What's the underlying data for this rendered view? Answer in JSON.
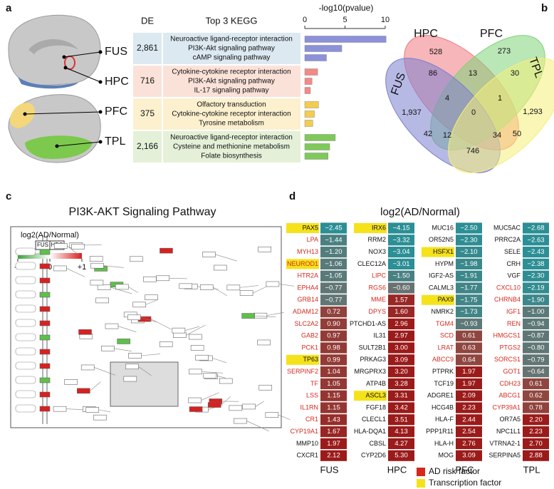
{
  "panel_labels": [
    "a",
    "b",
    "c",
    "d"
  ],
  "chart_data": [
    {
      "type": "bar",
      "title": "-log10(pvalue)",
      "de_header": "DE",
      "terms_header": "Top 3 KEGG",
      "xlim": [
        0,
        10
      ],
      "xticks": [
        0,
        5,
        10
      ],
      "groups": [
        {
          "name": "FUS",
          "de": "2,861",
          "color": "#8c91d9",
          "background": "#dce9f1",
          "categories": [
            "Neuroactive ligand-receptor interaction",
            "PI3K-Akt signaling pathway",
            "cAMP signaling pathway"
          ],
          "values": [
            10.1,
            4.6,
            2.7
          ]
        },
        {
          "name": "HPC",
          "de": "716",
          "color": "#f28a86",
          "background": "#fbe2d9",
          "categories": [
            "Cytokine-cytokine receptor interaction",
            "PI3K-Akt signaling pathway",
            "IL-17 signaling pathway"
          ],
          "values": [
            1.6,
            0.9,
            0.7
          ]
        },
        {
          "name": "PFC",
          "de": "375",
          "color": "#f4cc4e",
          "background": "#fcf0cf",
          "categories": [
            "Olfactory transduction",
            "Cytokine-cytokine receptor interaction",
            "Tyrosine metabolism"
          ],
          "values": [
            1.7,
            1.2,
            1.0
          ]
        },
        {
          "name": "TPL",
          "de": "2,166",
          "color": "#7fc95a",
          "background": "#e4f1d8",
          "categories": [
            "Neuroactive ligand-receptor interaction",
            "Cysteine and methionine metabolism",
            "Folate biosynthesis"
          ],
          "values": [
            3.8,
            3.1,
            2.9
          ]
        }
      ]
    },
    {
      "type": "venn",
      "sets": [
        "HPC",
        "PFC",
        "FUS",
        "TPL"
      ],
      "colors": [
        "#f07a80",
        "#7fd37a",
        "#7b7fd0",
        "#f6ef7a"
      ],
      "values": [
        528,
        273,
        1937,
        1293,
        86,
        13,
        30,
        4,
        1,
        42,
        0,
        50,
        12,
        34,
        746
      ],
      "value_labels": [
        "528",
        "273",
        "1,937",
        "1,293",
        "86",
        "13",
        "30",
        "4",
        "1",
        "42",
        "0",
        "50",
        "12",
        "34",
        "746"
      ]
    }
  ],
  "pathway": {
    "title": "PI3K-AKT Signaling Pathway",
    "legend_title": "log2(AD/Normal)",
    "legend_columns": [
      "FUS",
      "HPC"
    ],
    "ticks": [
      -1,
      0,
      {
        "value": 1,
        "label": "+1"
      }
    ]
  },
  "heatmap": {
    "title": "log2(AD/Normal)",
    "legend": [
      {
        "name": "AD risk factor",
        "color": "#d42a1e"
      },
      {
        "name": "Transcription factor",
        "color": "#f6e21b"
      }
    ],
    "columns": [
      {
        "name": "FUS",
        "genes": [
          "PAX5",
          "LPA",
          "MYH13",
          "NEUROD1",
          "HTR2A",
          "EPHA4",
          "GRB14",
          "ADAM12",
          "SLC2A2",
          "GAB2",
          "PCK1",
          "TP63",
          "SERPINF2",
          "TF",
          "LSS",
          "IL1RN",
          "CR1",
          "CYP19A1",
          "MMP10",
          "CXCR1"
        ],
        "values": [
          -2.45,
          -1.44,
          -1.2,
          -1.06,
          -1.05,
          -0.77,
          -0.77,
          0.72,
          0.9,
          0.97,
          0.98,
          0.99,
          1.04,
          1.05,
          1.15,
          1.15,
          1.43,
          1.67,
          1.97,
          2.12
        ],
        "value_labels": [
          "−2.45",
          "−1.44",
          "−1.20",
          "−1.06",
          "−1.05",
          "−0.77",
          "−0.77",
          "0.72",
          "0.90",
          "0.97",
          "0.98",
          "0.99",
          "1.04",
          "1.05",
          "1.15",
          "1.15",
          "1.43",
          "1.67",
          "1.97",
          "2.12"
        ],
        "risk": [
          false,
          true,
          true,
          true,
          true,
          true,
          true,
          true,
          true,
          true,
          true,
          false,
          true,
          true,
          true,
          true,
          true,
          true,
          false,
          false
        ],
        "tf": [
          true,
          false,
          false,
          true,
          false,
          false,
          false,
          false,
          false,
          false,
          false,
          true,
          false,
          false,
          false,
          false,
          false,
          false,
          false,
          false
        ]
      },
      {
        "name": "HPC",
        "genes": [
          "IRX6",
          "RRM2",
          "NOX3",
          "CLEC12A",
          "LIPC",
          "RGS6",
          "MME",
          "DPYS",
          "PTCHD1-AS",
          "IL31",
          "SULT2B1",
          "PRKAG3",
          "MRGPRX3",
          "ATP4B",
          "ASCL3",
          "FGF18",
          "CLECL1",
          "HLA-DQA1",
          "CBSL",
          "CYP2D6"
        ],
        "values": [
          -4.15,
          -3.32,
          -3.04,
          -3.01,
          -1.5,
          -0.6,
          1.57,
          1.6,
          2.96,
          2.97,
          3.0,
          3.09,
          3.2,
          3.28,
          3.31,
          3.42,
          3.51,
          4.13,
          4.27,
          5.3
        ],
        "value_labels": [
          "−4.15",
          "−3.32",
          "−3.04",
          "−3.01",
          "−1.50",
          "−0.60",
          "1.57",
          "1.60",
          "2.96",
          "2.97",
          "3.00",
          "3.09",
          "3.20",
          "3.28",
          "3.31",
          "3.42",
          "3.51",
          "4.13",
          "4.27",
          "5.30"
        ],
        "risk": [
          false,
          false,
          false,
          false,
          true,
          true,
          true,
          true,
          false,
          false,
          false,
          false,
          false,
          false,
          false,
          false,
          false,
          false,
          false,
          false
        ],
        "tf": [
          true,
          false,
          false,
          false,
          false,
          false,
          false,
          false,
          false,
          false,
          false,
          false,
          false,
          false,
          true,
          false,
          false,
          false,
          false,
          false
        ]
      },
      {
        "name": "PFC",
        "genes": [
          "MUC16",
          "OR52N5",
          "HSFX1",
          "HYPM",
          "IGF2-AS",
          "CALML3",
          "PAX9",
          "NMRK2",
          "TGM4",
          "SCD",
          "LRAT",
          "ABCC9",
          "PTPRK",
          "TCF19",
          "ADGRE1",
          "HCG4B",
          "HLA-F",
          "PPP1R11",
          "HLA-H",
          "MOG"
        ],
        "values": [
          -2.5,
          -2.3,
          -2.1,
          -1.98,
          -1.91,
          -1.77,
          -1.75,
          -1.73,
          -0.93,
          0.61,
          0.63,
          0.64,
          1.97,
          1.97,
          2.09,
          2.23,
          2.44,
          2.54,
          2.76,
          3.09
        ],
        "value_labels": [
          "−2.50",
          "−2.30",
          "−2.10",
          "−1.98",
          "−1.91",
          "−1.77",
          "−1.75",
          "−1.73",
          "−0.93",
          "0.61",
          "0.63",
          "0.64",
          "1.97",
          "1.97",
          "2.09",
          "2.23",
          "2.44",
          "2.54",
          "2.76",
          "3.09"
        ],
        "risk": [
          false,
          false,
          false,
          false,
          false,
          false,
          false,
          false,
          true,
          true,
          true,
          true,
          false,
          false,
          false,
          false,
          false,
          false,
          false,
          false
        ],
        "tf": [
          false,
          false,
          true,
          false,
          false,
          false,
          true,
          false,
          false,
          false,
          false,
          false,
          false,
          false,
          false,
          false,
          false,
          false,
          false,
          false
        ]
      },
      {
        "name": "TPL",
        "genes": [
          "MUC5AC",
          "PRRC2A",
          "SELE",
          "CRH",
          "VGF",
          "CXCL10",
          "CHRNB4",
          "IGF1",
          "REN",
          "HMGCS1",
          "PTGS2",
          "SORCS1",
          "GOT1",
          "CDH23",
          "ABCG1",
          "CYP39A1",
          "OR7A5",
          "NPC1L1",
          "VTRNA2-1",
          "SERPINA5"
        ],
        "values": [
          -2.68,
          -2.63,
          -2.43,
          -2.38,
          -2.3,
          -2.19,
          -1.9,
          -1.0,
          -0.94,
          -0.87,
          -0.8,
          -0.79,
          -0.64,
          0.61,
          0.62,
          0.78,
          2.2,
          2.23,
          2.7,
          2.88
        ],
        "value_labels": [
          "−2.68",
          "−2.63",
          "−2.43",
          "−2.38",
          "−2.30",
          "−2.19",
          "−1.90",
          "−1.00",
          "−0.94",
          "−0.87",
          "−0.80",
          "−0.79",
          "−0.64",
          "0.61",
          "0.62",
          "0.78",
          "2.20",
          "2.23",
          "2.70",
          "2.88"
        ],
        "risk": [
          false,
          false,
          false,
          false,
          false,
          true,
          true,
          true,
          true,
          true,
          true,
          true,
          true,
          true,
          true,
          true,
          false,
          false,
          false,
          false
        ],
        "tf": [
          false,
          false,
          false,
          false,
          false,
          false,
          false,
          false,
          false,
          false,
          false,
          false,
          false,
          false,
          false,
          false,
          false,
          false,
          false,
          false
        ]
      }
    ]
  }
}
